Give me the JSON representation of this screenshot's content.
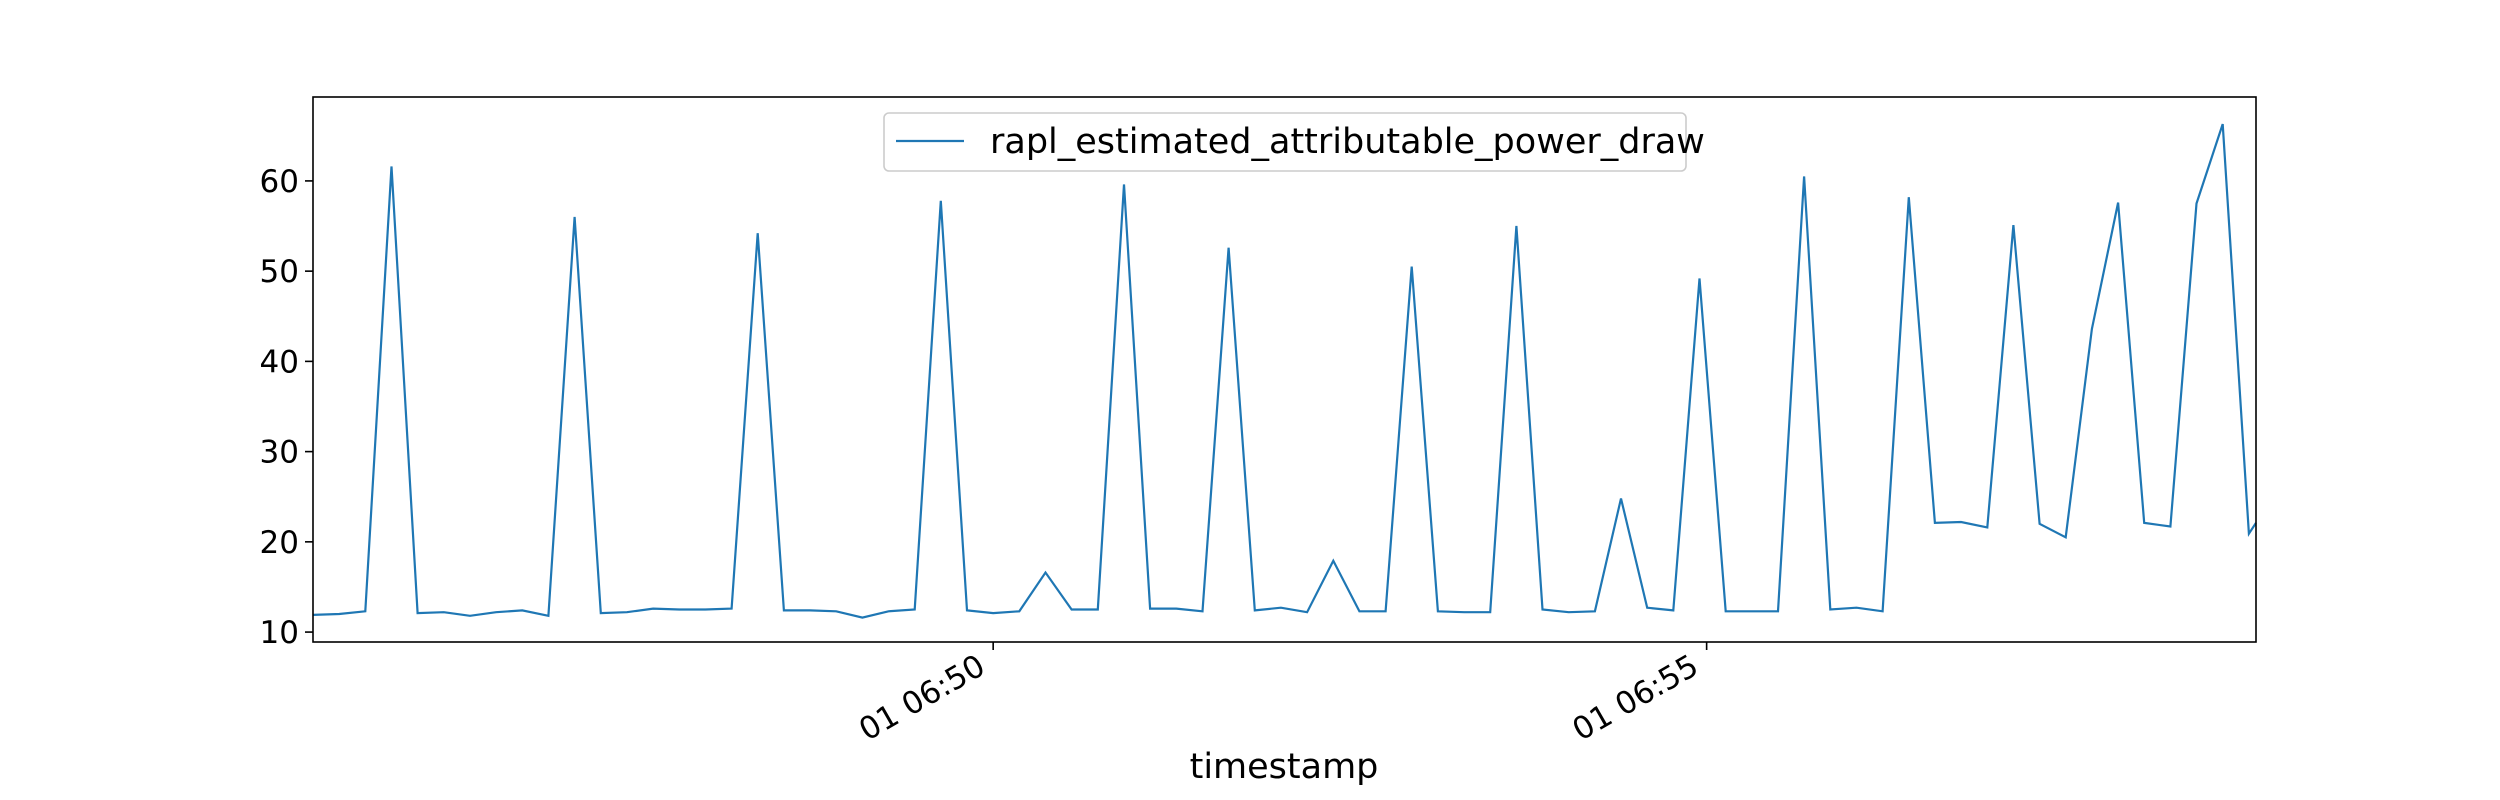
{
  "chart_data": {
    "type": "line",
    "title": "",
    "xlabel": "timestamp",
    "ylabel": "",
    "ylim": [
      8.9,
      69.3
    ],
    "xlim": [
      "2024-01-01 06:45:14",
      "2024-01-01 06:58:51"
    ],
    "yticks": [
      10,
      20,
      30,
      40,
      50,
      60
    ],
    "ytick_labels": [
      "10",
      "20",
      "30",
      "40",
      "50",
      "60"
    ],
    "xticks": [
      "2024-01-01 06:50:00",
      "2024-01-01 06:55:00"
    ],
    "xtick_labels": [
      "01 06:50",
      "01 06:55"
    ],
    "grid": false,
    "legend_position": "top-center",
    "series": [
      {
        "name": "rapl_estimated_attributable_power_draw",
        "color": "#1f77b4",
        "x": [
          "2024-01-01 06:45:14",
          "2024-01-01 06:45:25",
          "2024-01-01 06:45:36",
          "2024-01-01 06:45:47",
          "2024-01-01 06:45:58",
          "2024-01-01 06:46:09",
          "2024-01-01 06:46:20",
          "2024-01-01 06:46:31",
          "2024-01-01 06:46:42",
          "2024-01-01 06:46:53",
          "2024-01-01 06:47:04",
          "2024-01-01 06:47:15",
          "2024-01-01 06:47:26",
          "2024-01-01 06:47:37",
          "2024-01-01 06:47:48",
          "2024-01-01 06:47:59",
          "2024-01-01 06:48:10",
          "2024-01-01 06:48:21",
          "2024-01-01 06:48:32",
          "2024-01-01 06:48:43",
          "2024-01-01 06:48:54",
          "2024-01-01 06:49:05",
          "2024-01-01 06:49:16",
          "2024-01-01 06:49:27",
          "2024-01-01 06:49:38",
          "2024-01-01 06:49:49",
          "2024-01-01 06:50:00",
          "2024-01-01 06:50:11",
          "2024-01-01 06:50:22",
          "2024-01-01 06:50:33",
          "2024-01-01 06:50:44",
          "2024-01-01 06:50:55",
          "2024-01-01 06:51:06",
          "2024-01-01 06:51:17",
          "2024-01-01 06:51:28",
          "2024-01-01 06:51:39",
          "2024-01-01 06:51:50",
          "2024-01-01 06:52:01",
          "2024-01-01 06:52:12",
          "2024-01-01 06:52:23",
          "2024-01-01 06:52:34",
          "2024-01-01 06:52:45",
          "2024-01-01 06:52:56",
          "2024-01-01 06:53:07",
          "2024-01-01 06:53:18",
          "2024-01-01 06:53:29",
          "2024-01-01 06:53:40",
          "2024-01-01 06:53:51",
          "2024-01-01 06:54:02",
          "2024-01-01 06:54:13",
          "2024-01-01 06:54:24",
          "2024-01-01 06:54:35",
          "2024-01-01 06:54:46",
          "2024-01-01 06:54:57",
          "2024-01-01 06:55:08",
          "2024-01-01 06:55:19",
          "2024-01-01 06:55:30",
          "2024-01-01 06:55:41",
          "2024-01-01 06:55:52",
          "2024-01-01 06:56:03",
          "2024-01-01 06:56:14",
          "2024-01-01 06:56:25",
          "2024-01-01 06:56:36",
          "2024-01-01 06:56:47",
          "2024-01-01 06:56:58",
          "2024-01-01 06:57:09",
          "2024-01-01 06:57:20",
          "2024-01-01 06:57:31",
          "2024-01-01 06:57:42",
          "2024-01-01 06:57:53",
          "2024-01-01 06:58:04",
          "2024-01-01 06:58:15",
          "2024-01-01 06:58:26",
          "2024-01-01 06:58:37",
          "2024-01-01 06:58:48",
          "2024-01-01 06:58:51"
        ],
        "y": [
          11.9,
          12.0,
          12.3,
          61.6,
          12.1,
          12.2,
          11.8,
          12.2,
          12.4,
          11.8,
          56.0,
          12.1,
          12.2,
          12.6,
          12.5,
          12.5,
          12.6,
          54.2,
          12.4,
          12.4,
          12.3,
          11.6,
          12.3,
          12.5,
          57.8,
          12.4,
          12.1,
          12.3,
          16.6,
          12.5,
          12.5,
          59.6,
          12.6,
          12.6,
          12.3,
          52.6,
          12.4,
          12.7,
          12.2,
          17.9,
          12.3,
          12.3,
          50.5,
          12.3,
          12.2,
          12.2,
          55.0,
          12.5,
          12.2,
          12.3,
          24.8,
          12.7,
          12.4,
          49.2,
          12.3,
          12.3,
          12.3,
          60.5,
          12.5,
          12.7,
          12.3,
          58.2,
          22.1,
          22.2,
          21.6,
          55.1,
          22.0,
          20.5,
          43.6,
          57.6,
          22.1,
          21.7,
          57.5,
          66.3,
          20.9,
          22.1
        ]
      }
    ]
  }
}
